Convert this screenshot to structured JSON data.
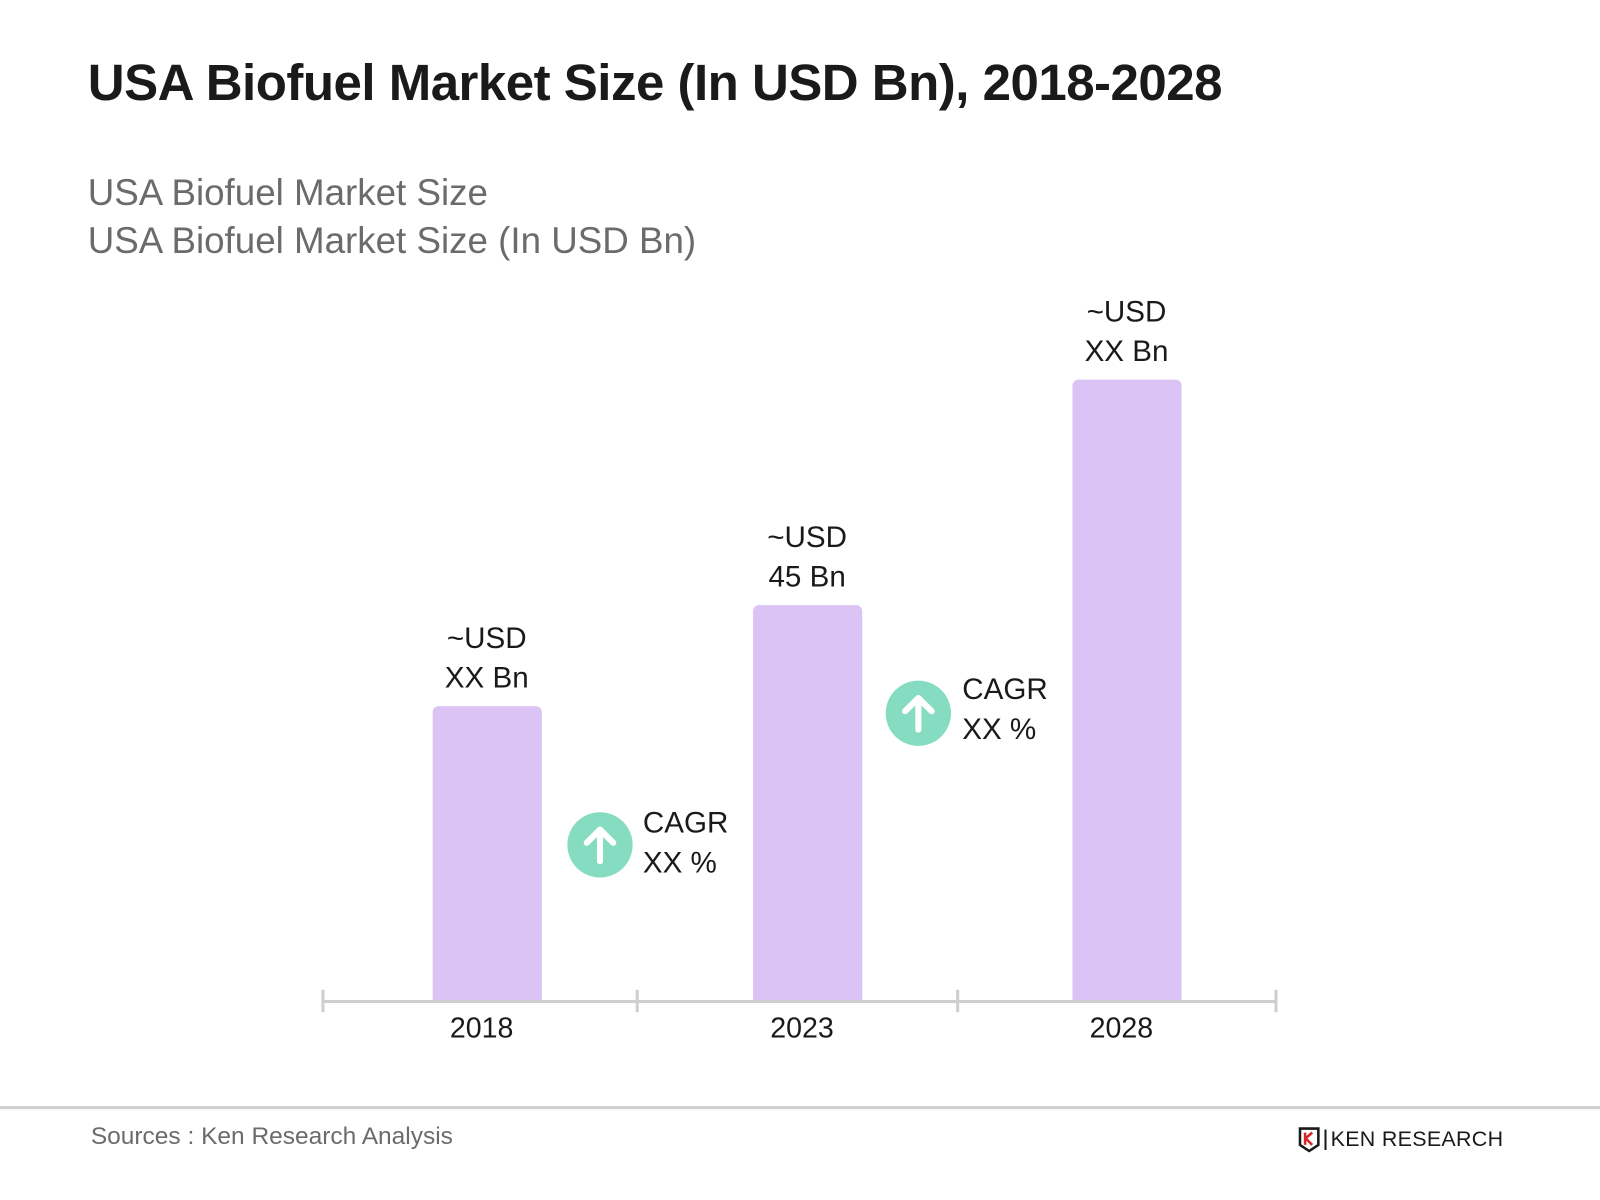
{
  "chart_data": {
    "type": "bar",
    "title": "USA Biofuel Market Size (In USD Bn), 2018-2028",
    "subtitle": [
      "USA Biofuel Market Size",
      "USA Biofuel Market Size (In USD Bn)"
    ],
    "categories": [
      "2018",
      "2023",
      "2028"
    ],
    "values": [
      33.5,
      45,
      70.6
    ],
    "data_labels": [
      {
        "line1": "~USD",
        "line2": "XX Bn"
      },
      {
        "line1": "~USD",
        "line2": "45 Bn"
      },
      {
        "line1": "~USD",
        "line2": "XX Bn"
      }
    ],
    "annotations": [
      {
        "line1": "CAGR",
        "line2": "XX %",
        "icon": "arrow-up-circle-icon"
      },
      {
        "line1": "CAGR",
        "line2": "XX %",
        "icon": "arrow-up-circle-icon"
      }
    ],
    "xlabel": "",
    "ylabel": "",
    "ylim": [
      0,
      72
    ],
    "grid": false,
    "colors": {
      "bar": "#dcc3f5",
      "cagr_icon": "#86dcc0",
      "axis": "#cfcfcf"
    }
  },
  "footer": {
    "source": "Sources : Ken Research Analysis",
    "logo_text": "KEN RESEARCH"
  }
}
